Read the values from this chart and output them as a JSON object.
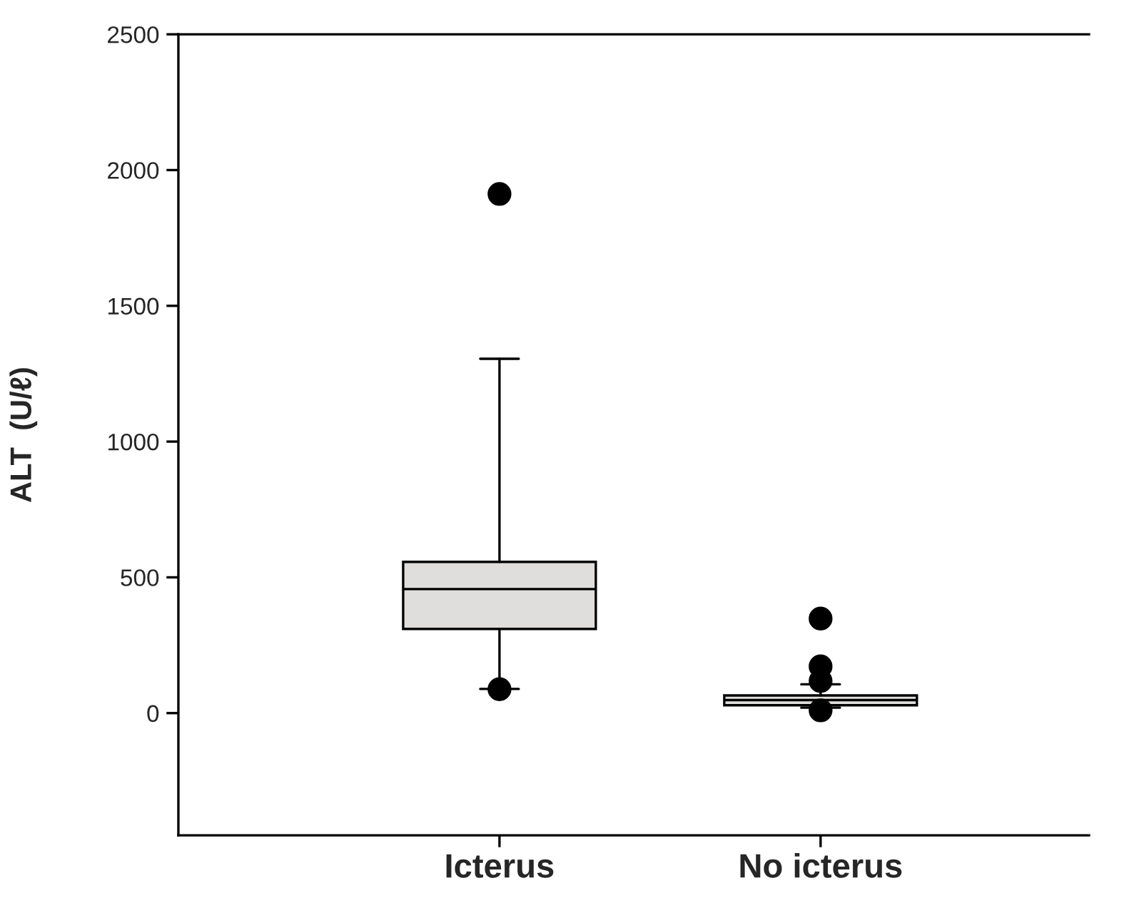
{
  "chart_data": {
    "type": "box",
    "ylabel": "ALT  (U/ℓ)",
    "categories": [
      "Icterus",
      "No icterus"
    ],
    "boxes": [
      {
        "low": 89,
        "q1": 310,
        "median": 457,
        "q3": 557,
        "high": 1305,
        "outliers": [
          88,
          1912
        ]
      },
      {
        "low": 20,
        "q1": 29,
        "median": 48,
        "q3": 65,
        "high": 106,
        "outliers": [
          10,
          118,
          172,
          348
        ]
      }
    ],
    "colors": [
      "#e0dedc",
      "#e0dedc"
    ],
    "ylim": [
      -450,
      2500
    ],
    "yticks": [
      0,
      500,
      1000,
      1500,
      2000,
      2500
    ],
    "grid": false
  }
}
